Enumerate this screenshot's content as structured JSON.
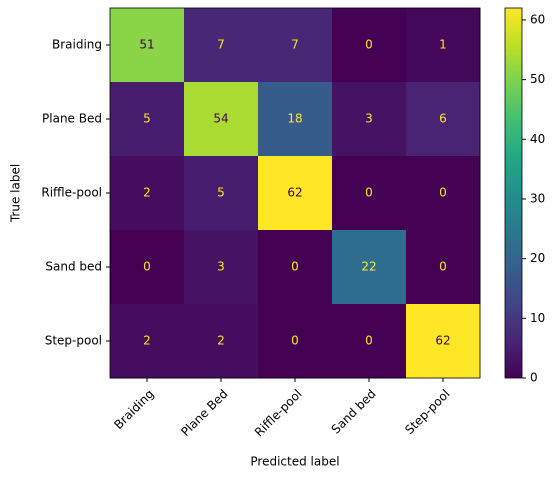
{
  "chart_data": {
    "type": "heatmap",
    "categories": [
      "Braiding",
      "Plane Bed",
      "Riffle-pool",
      "Sand bed",
      "Step-pool"
    ],
    "values": [
      [
        51,
        7,
        7,
        0,
        1
      ],
      [
        5,
        54,
        18,
        3,
        6
      ],
      [
        2,
        5,
        62,
        0,
        0
      ],
      [
        0,
        3,
        0,
        22,
        0
      ],
      [
        2,
        2,
        0,
        0,
        62
      ]
    ],
    "x_label": "Predicted label",
    "y_label": "True label",
    "colormap": "viridis",
    "clim": [
      0,
      62
    ],
    "colorbar_ticks": [
      0,
      10,
      20,
      30,
      40,
      50,
      60
    ]
  }
}
